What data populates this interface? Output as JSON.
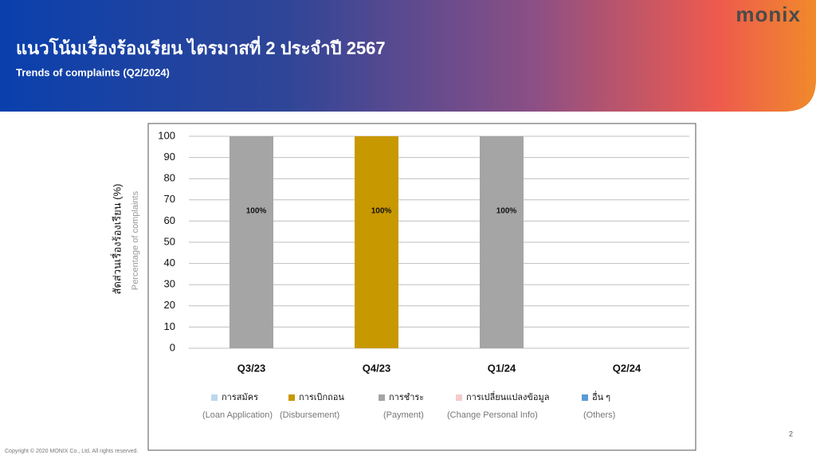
{
  "header": {
    "title": "แนวโน้มเรื่องร้องเรียน ไตรมาสที่ 2 ประจำปี 2567",
    "subtitle": "Trends of complaints (Q2/2024)",
    "logo": "monix"
  },
  "footer": {
    "copyright": "Copyright © 2020 MONIX Co., Ltd. All rights reserved.",
    "page": "2"
  },
  "chart_data": {
    "type": "stacked_bar",
    "y_label": "สัดส่วนเรื่องร้องเรียน (%)",
    "y_label_sub": "Percentage of complaints",
    "categories": [
      "Q3/23",
      "Q4/23",
      "Q1/24",
      "Q2/24"
    ],
    "series": [
      {
        "name": "การสมัคร",
        "name_en": "(Loan Application)",
        "color": "#bdd7ee",
        "values": [
          0,
          0,
          0,
          null
        ]
      },
      {
        "name": "การเบิกถอน",
        "name_en": "(Disbursement)",
        "color": "#c89800",
        "values": [
          0,
          100,
          0,
          null
        ],
        "value_labels": [
          null,
          "100%",
          null,
          null
        ]
      },
      {
        "name": "การชำระ",
        "name_en": "(Payment)",
        "color": "#a5a5a5",
        "values": [
          100,
          0,
          100,
          null
        ],
        "value_labels": [
          "100%",
          null,
          "100%",
          null
        ]
      },
      {
        "name": "การเปลี่ยนแปลงข้อมูล",
        "name_en": "(Change Personal Info)",
        "color": "#f4cccc",
        "values": [
          0,
          0,
          0,
          null
        ]
      },
      {
        "name": "อื่น ๆ",
        "name_en": "(Others)",
        "color": "#5b9bd5",
        "values": [
          0,
          0,
          0,
          null
        ]
      }
    ],
    "ylim": [
      0,
      100
    ],
    "yticks": [
      0,
      10,
      20,
      30,
      40,
      50,
      60,
      70,
      80,
      90,
      100
    ],
    "grid": true
  }
}
